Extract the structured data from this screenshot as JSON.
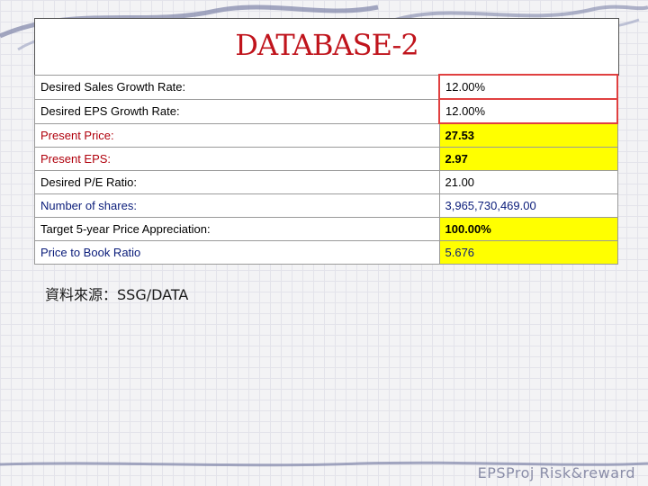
{
  "slide": {
    "title": "DATABASE-2",
    "source": "資料來源：SSG/DATA",
    "footer": "EPSProj  Risk&reward"
  },
  "rows": [
    {
      "label": "Desired Sales Growth Rate:",
      "value": "12.00%"
    },
    {
      "label": "Desired EPS Growth Rate:",
      "value": "12.00%"
    },
    {
      "label": "Present Price:",
      "value": "27.53"
    },
    {
      "label": "Present EPS:",
      "value": "2.97"
    },
    {
      "label": "Desired P/E Ratio:",
      "value": "21.00"
    },
    {
      "label": "Number of shares:",
      "value": "3,965,730,469.00"
    },
    {
      "label": "Target 5-year Price Appreciation:",
      "value": "100.00%"
    },
    {
      "label": "Price to Book Ratio",
      "value": "5.676"
    }
  ],
  "colors": {
    "title": "#c0141c",
    "highlight": "#ffff00",
    "input_border": "#e04040"
  }
}
